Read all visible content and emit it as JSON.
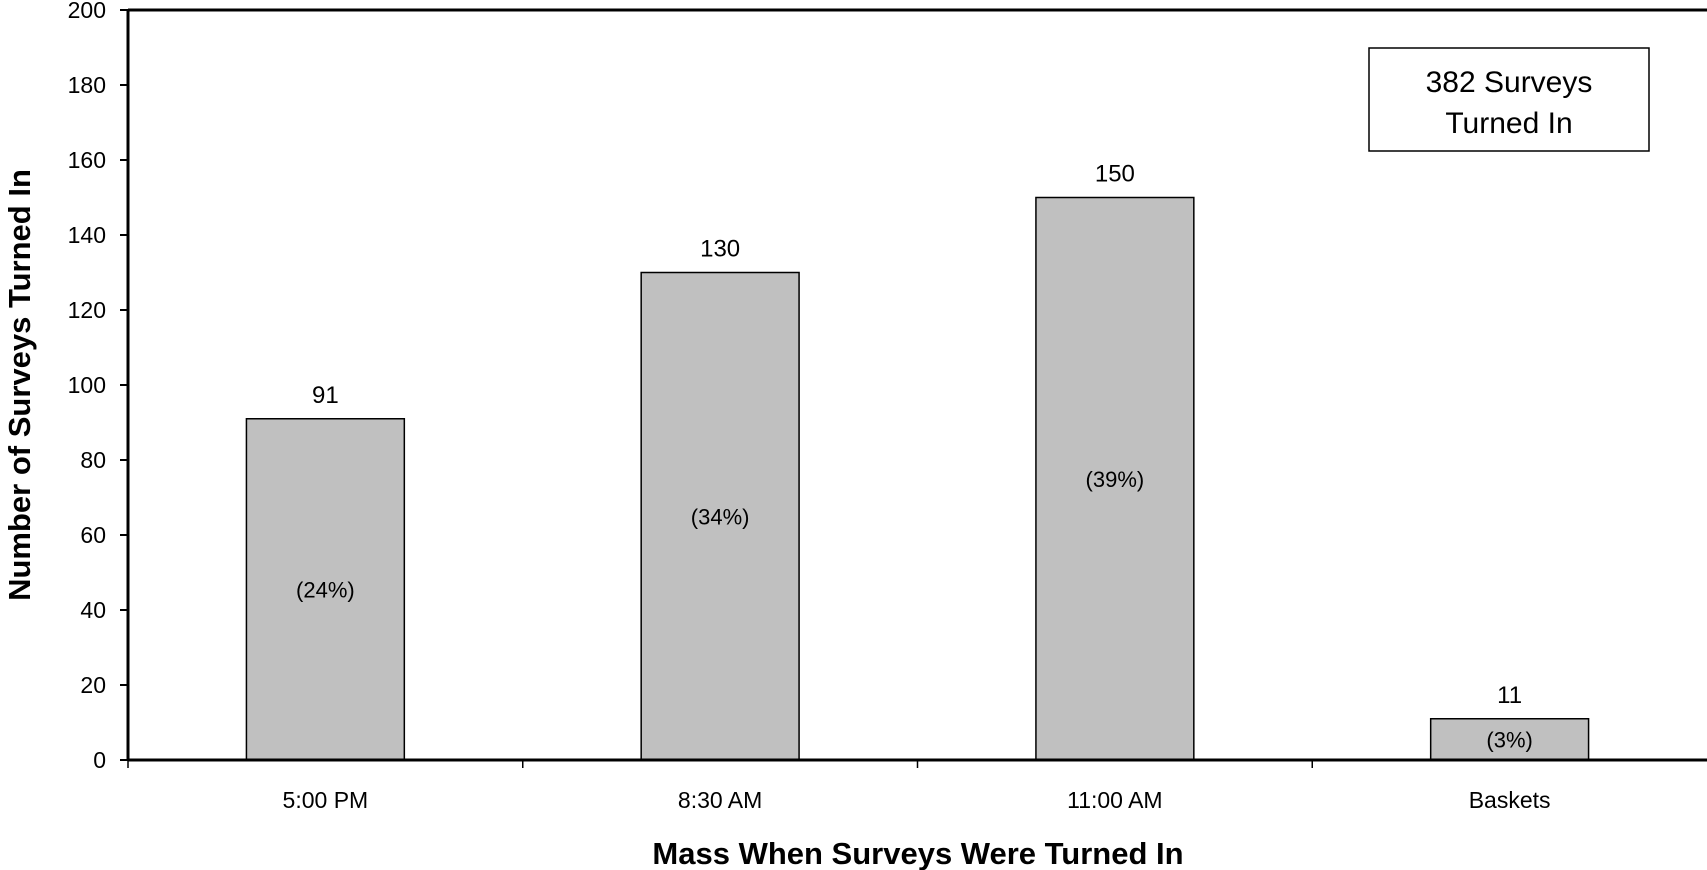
{
  "chart_data": {
    "type": "bar",
    "title": "",
    "xlabel": "Mass When Surveys Were Turned In",
    "ylabel": "Number of Surveys Turned In",
    "ylim": [
      0,
      200
    ],
    "yticks": [
      0,
      20,
      40,
      60,
      80,
      100,
      120,
      140,
      160,
      180,
      200
    ],
    "categories": [
      "5:00 PM",
      "8:30 AM",
      "11:00 AM",
      "Baskets"
    ],
    "values": [
      91,
      130,
      150,
      11
    ],
    "value_labels": [
      "91",
      "130",
      "150",
      "11"
    ],
    "percent_labels": [
      "(24%)",
      "(34%)",
      "(39%)",
      "(3%)"
    ],
    "bar_color": "#c0c0c0",
    "grid": false,
    "annotation": {
      "line1": "382 Surveys",
      "line2": "Turned In",
      "placement": "top-right"
    }
  }
}
